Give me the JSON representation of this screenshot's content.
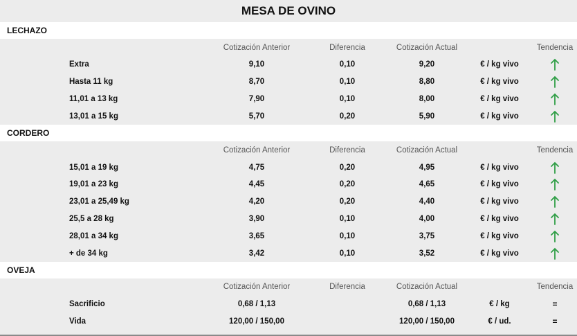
{
  "title": "MESA DE OVINO",
  "columns": {
    "anterior": "Cotización Anterior",
    "diferencia": "Diferencia",
    "actual": "Cotización Actual",
    "tendencia": "Tendencia"
  },
  "colors": {
    "arrow_up": "#2f9e46",
    "header_bg": "#ffffff",
    "body_bg": "#ececec"
  },
  "sections": [
    {
      "name": "LECHAZO",
      "rows": [
        {
          "label": "Extra",
          "anterior": "9,10",
          "diferencia": "0,10",
          "actual": "9,20",
          "unidad": "€ / kg vivo",
          "tendencia": "up-arrow-icon"
        },
        {
          "label": "Hasta 11 kg",
          "anterior": "8,70",
          "diferencia": "0,10",
          "actual": "8,80",
          "unidad": "€ / kg vivo",
          "tendencia": "up-arrow-icon"
        },
        {
          "label": "11,01 a 13 kg",
          "anterior": "7,90",
          "diferencia": "0,10",
          "actual": "8,00",
          "unidad": "€ / kg vivo",
          "tendencia": "up-arrow-icon"
        },
        {
          "label": "13,01 a 15 kg",
          "anterior": "5,70",
          "diferencia": "0,20",
          "actual": "5,90",
          "unidad": "€ / kg vivo",
          "tendencia": "up-arrow-icon"
        }
      ]
    },
    {
      "name": "CORDERO",
      "rows": [
        {
          "label": "15,01 a 19 kg",
          "anterior": "4,75",
          "diferencia": "0,20",
          "actual": "4,95",
          "unidad": "€ / kg vivo",
          "tendencia": "up-arrow-icon"
        },
        {
          "label": "19,01 a 23 kg",
          "anterior": "4,45",
          "diferencia": "0,20",
          "actual": "4,65",
          "unidad": "€ / kg vivo",
          "tendencia": "up-arrow-icon"
        },
        {
          "label": "23,01 a 25,49 kg",
          "anterior": "4,20",
          "diferencia": "0,20",
          "actual": "4,40",
          "unidad": "€ / kg vivo",
          "tendencia": "up-arrow-icon"
        },
        {
          "label": "25,5 a 28 kg",
          "anterior": "3,90",
          "diferencia": "0,10",
          "actual": "4,00",
          "unidad": "€ / kg vivo",
          "tendencia": "up-arrow-icon"
        },
        {
          "label": "28,01 a 34 kg",
          "anterior": "3,65",
          "diferencia": "0,10",
          "actual": "3,75",
          "unidad": "€ / kg vivo",
          "tendencia": "up-arrow-icon"
        },
        {
          "label": "+ de 34 kg",
          "anterior": "3,42",
          "diferencia": "0,10",
          "actual": "3,52",
          "unidad": "€ / kg vivo",
          "tendencia": "up-arrow-icon"
        }
      ]
    },
    {
      "name": "OVEJA",
      "rows": [
        {
          "label": "Sacrificio",
          "anterior": "0,68 / 1,13",
          "diferencia": "",
          "actual": "0,68 / 1,13",
          "unidad": "€ / kg",
          "tendencia": "="
        },
        {
          "label": "Vida",
          "anterior": "120,00 / 150,00",
          "diferencia": "",
          "actual": "120,00 / 150,00",
          "unidad": "€ / ud.",
          "tendencia": "="
        }
      ]
    }
  ]
}
